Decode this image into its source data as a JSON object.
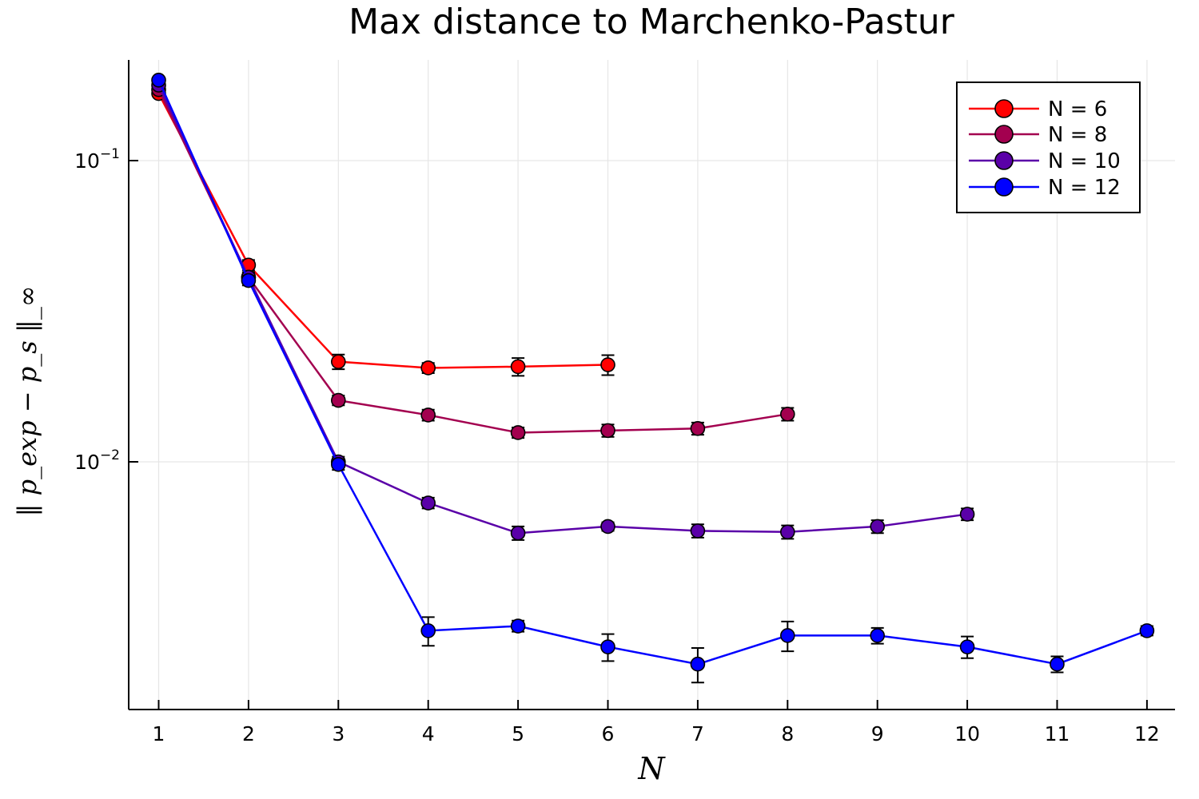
{
  "chart_data": {
    "type": "line",
    "title": "Max distance to Marchenko-Pastur",
    "xlabel": "N",
    "ylabel": "‖ p_exp − p_s ‖_∞",
    "x_ticks": [
      "1",
      "2",
      "3",
      "4",
      "5",
      "6",
      "7",
      "8",
      "9",
      "10",
      "11",
      "12"
    ],
    "y_scale": "log",
    "y_ticks": [
      {
        "value": 0.01,
        "base": "10",
        "exp": "−2"
      },
      {
        "value": 0.1,
        "base": "10",
        "exp": "−1"
      }
    ],
    "xlim": [
      0.67,
      12.33
    ],
    "ylim": [
      0.0015,
      0.2
    ],
    "grid": true,
    "legend_position": "top-right",
    "series": [
      {
        "name": "N = 6",
        "color": "#ff0000",
        "x": [
          1,
          2,
          3,
          4,
          5,
          6
        ],
        "y": [
          0.167,
          0.045,
          0.0215,
          0.0205,
          0.0207,
          0.021
        ],
        "err": [
          0.004,
          0.0018,
          0.0012,
          0.0008,
          0.0014,
          0.0016
        ]
      },
      {
        "name": "N = 8",
        "color": "#a3004f",
        "x": [
          1,
          2,
          3,
          4,
          5,
          6,
          7,
          8
        ],
        "y": [
          0.172,
          0.041,
          0.016,
          0.0143,
          0.0125,
          0.0127,
          0.0129,
          0.0144
        ],
        "err": [
          0.004,
          0.0016,
          0.0006,
          0.0006,
          0.0005,
          0.0006,
          0.0006,
          0.0007
        ]
      },
      {
        "name": "N = 10",
        "color": "#5a00a8",
        "x": [
          1,
          2,
          3,
          4,
          5,
          6,
          7,
          8,
          9,
          10
        ],
        "y": [
          0.178,
          0.041,
          0.01,
          0.0073,
          0.0058,
          0.0061,
          0.0059,
          0.00585,
          0.0061,
          0.0067
        ],
        "err": [
          0.004,
          0.0015,
          0.0004,
          0.0003,
          0.0003,
          0.0002,
          0.0003,
          0.0003,
          0.0003,
          0.0003
        ]
      },
      {
        "name": "N = 12",
        "color": "#0000ff",
        "x": [
          1,
          2,
          3,
          4,
          5,
          6,
          7,
          8,
          9,
          10,
          11,
          12
        ],
        "y": [
          0.185,
          0.04,
          0.0098,
          0.00275,
          0.00285,
          0.00243,
          0.00213,
          0.00265,
          0.00265,
          0.00243,
          0.00213,
          0.00275
        ],
        "err": [
          0.004,
          0.0015,
          0.0004,
          0.0003,
          0.00012,
          0.00025,
          0.00028,
          0.0003,
          0.00016,
          0.0002,
          0.00013,
          0.0001
        ]
      }
    ]
  }
}
